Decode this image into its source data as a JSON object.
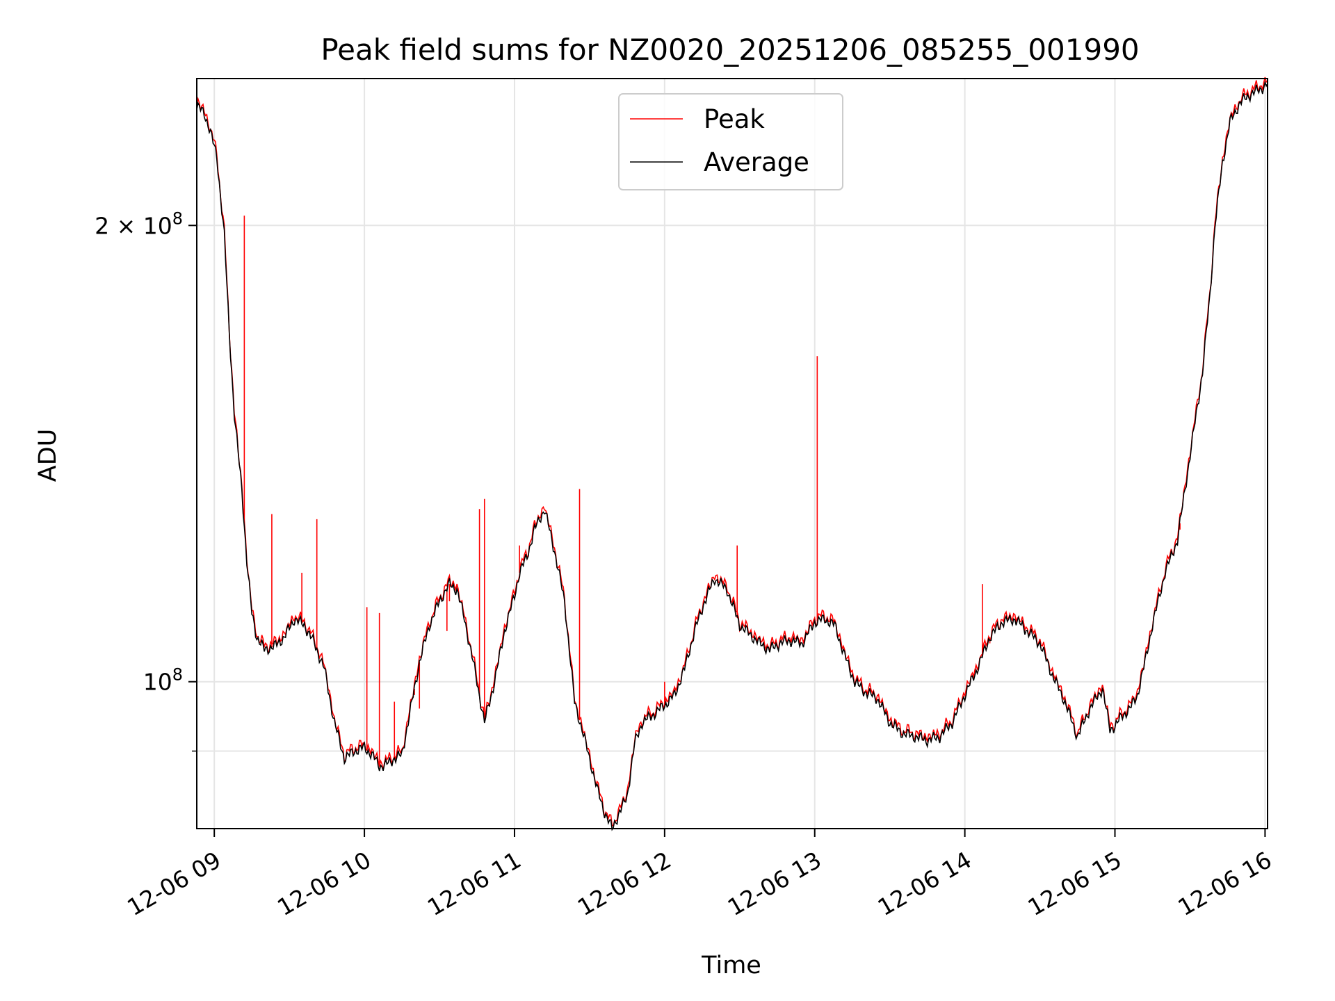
{
  "chart_data": {
    "type": "line",
    "title": "Peak field sums for NZ0020_20251206_085255_001990",
    "xlabel": "Time",
    "ylabel": "ADU",
    "yscale": "log",
    "grid": true,
    "legend_position": "top-center",
    "xlim": [
      "12-06 08:53",
      "12-06 16:01"
    ],
    "ylim": [
      80000000,
      250000000
    ],
    "x_ticks": [
      "12-06 09:00",
      "12-06 10:00",
      "12-06 11:00",
      "12-06 12:00",
      "12-06 13:00",
      "12-06 14:00",
      "12-06 15:00",
      "12-06 16:00"
    ],
    "x_tick_labels": [
      "12-06 09",
      "12-06 10",
      "12-06 11",
      "12-06 12",
      "12-06 13",
      "12-06 14",
      "12-06 15",
      "12-06 16"
    ],
    "y_ticks": [
      100000000,
      200000000
    ],
    "y_minor_ticks": [
      90000000
    ],
    "y_tick_labels": [
      {
        "base": "10",
        "exp": "8",
        "prefix": ""
      },
      {
        "base": "10",
        "exp": "8",
        "prefix": "2 × "
      }
    ],
    "series": [
      {
        "name": "Average",
        "color": "#000000",
        "x": [
          "12-06 08:53",
          "12-06 08:56",
          "12-06 08:58",
          "12-06 09:01",
          "12-06 09:04",
          "12-06 09:06",
          "12-06 09:08",
          "12-06 09:11",
          "12-06 09:13",
          "12-06 09:15",
          "12-06 09:17",
          "12-06 09:20",
          "12-06 09:24",
          "12-06 09:28",
          "12-06 09:32",
          "12-06 09:36",
          "12-06 09:40",
          "12-06 09:44",
          "12-06 09:48",
          "12-06 09:52",
          "12-06 09:56",
          "12-06 10:00",
          "12-06 10:03",
          "12-06 10:06",
          "12-06 10:08",
          "12-06 10:12",
          "12-06 10:15",
          "12-06 10:18",
          "12-06 10:22",
          "12-06 10:26",
          "12-06 10:30",
          "12-06 10:34",
          "12-06 10:37",
          "12-06 10:40",
          "12-06 10:44",
          "12-06 10:48",
          "12-06 10:52",
          "12-06 10:56",
          "12-06 11:00",
          "12-06 11:02",
          "12-06 11:05",
          "12-06 11:08",
          "12-06 11:12",
          "12-06 11:16",
          "12-06 11:20",
          "12-06 11:24",
          "12-06 11:27",
          "12-06 11:30",
          "12-06 11:33",
          "12-06 11:36",
          "12-06 11:39",
          "12-06 11:42",
          "12-06 11:45",
          "12-06 11:48",
          "12-06 11:51",
          "12-06 11:55",
          "12-06 12:00",
          "12-06 12:04",
          "12-06 12:08",
          "12-06 12:12",
          "12-06 12:16",
          "12-06 12:20",
          "12-06 12:25",
          "12-06 12:30",
          "12-06 12:34",
          "12-06 12:38",
          "12-06 12:42",
          "12-06 12:46",
          "12-06 12:50",
          "12-06 12:55",
          "12-06 13:00",
          "12-06 13:04",
          "12-06 13:08",
          "12-06 13:12",
          "12-06 13:16",
          "12-06 13:20",
          "12-06 13:25",
          "12-06 13:30",
          "12-06 13:35",
          "12-06 13:40",
          "12-06 13:45",
          "12-06 13:50",
          "12-06 13:55",
          "12-06 14:00",
          "12-06 14:05",
          "12-06 14:10",
          "12-06 14:15",
          "12-06 14:20",
          "12-06 14:25",
          "12-06 14:30",
          "12-06 14:35",
          "12-06 14:40",
          "12-06 14:45",
          "12-06 14:50",
          "12-06 14:55",
          "12-06 14:58",
          "12-06 15:00",
          "12-06 15:03",
          "12-06 15:06",
          "12-06 15:09",
          "12-06 15:12",
          "12-06 15:15",
          "12-06 15:20",
          "12-06 15:25",
          "12-06 15:30",
          "12-06 15:35",
          "12-06 15:38",
          "12-06 15:40",
          "12-06 15:43",
          "12-06 15:46",
          "12-06 15:50",
          "12-06 15:54",
          "12-06 15:58",
          "12-06 16:01"
        ],
        "values": [
          240000000,
          237000000,
          232000000,
          222000000,
          197000000,
          170000000,
          150000000,
          134000000,
          120000000,
          111000000,
          107000000,
          105000000,
          105500000,
          107000000,
          110000000,
          109000000,
          106000000,
          102000000,
          94000000,
          89000000,
          90000000,
          90500000,
          89500000,
          88000000,
          88000000,
          89000000,
          89500000,
          95000000,
          103000000,
          109000000,
          113000000,
          116000000,
          115000000,
          110000000,
          102000000,
          94000000,
          100000000,
          108000000,
          114000000,
          118000000,
          121000000,
          126000000,
          130000000,
          122000000,
          113000000,
          97000000,
          93000000,
          89000000,
          85000000,
          82000000,
          80000000,
          82000000,
          84000000,
          91000000,
          94000000,
          95000000,
          96500000,
          98000000,
          102000000,
          108000000,
          113000000,
          117000000,
          115000000,
          109000000,
          107500000,
          106000000,
          105000000,
          106000000,
          106500000,
          106000000,
          109500000,
          110000000,
          109000000,
          104000000,
          100000000,
          98500000,
          97500000,
          94000000,
          92500000,
          92000000,
          91500000,
          92000000,
          94000000,
          98000000,
          102000000,
          107000000,
          109500000,
          110000000,
          108000000,
          106000000,
          101000000,
          97000000,
          92000000,
          96000000,
          99000000,
          93000000,
          93500000,
          95000000,
          96000000,
          98000000,
          103000000,
          109000000,
          118000000,
          124000000,
          141000000,
          160000000,
          180000000,
          200000000,
          220000000,
          234000000,
          241000000,
          244000000,
          246000000,
          248000000
        ],
        "note_hidden": ""
      },
      {
        "name": "Peak",
        "color": "#ff0000",
        "spikes": [
          {
            "x": "12-06 09:12",
            "value": 203000000
          },
          {
            "x": "12-06 09:23",
            "value": 129000000
          },
          {
            "x": "12-06 09:35",
            "value": 118000000
          },
          {
            "x": "12-06 09:41",
            "value": 128000000
          },
          {
            "x": "12-06 10:01",
            "value": 112000000
          },
          {
            "x": "12-06 10:06",
            "value": 111000000
          },
          {
            "x": "12-06 10:12",
            "value": 97000000
          },
          {
            "x": "12-06 10:20",
            "value": 98000000
          },
          {
            "x": "12-06 10:22",
            "value": 96000000
          },
          {
            "x": "12-06 10:33",
            "value": 108000000
          },
          {
            "x": "12-06 10:34",
            "value": 113000000
          },
          {
            "x": "12-06 10:46",
            "value": 130000000
          },
          {
            "x": "12-06 10:48",
            "value": 132000000
          },
          {
            "x": "12-06 11:02",
            "value": 123000000
          },
          {
            "x": "12-06 11:26",
            "value": 134000000
          },
          {
            "x": "12-06 12:00",
            "value": 100000000
          },
          {
            "x": "12-06 12:29",
            "value": 123000000
          },
          {
            "x": "12-06 13:01",
            "value": 164000000
          },
          {
            "x": "12-06 14:07",
            "value": 116000000
          },
          {
            "x": "12-06 14:10",
            "value": 106000000
          },
          {
            "x": "12-06 15:26",
            "value": 126000000
          }
        ]
      }
    ],
    "legend": [
      {
        "label": "Peak",
        "color": "#ff0000"
      },
      {
        "label": "Average",
        "color": "#000000"
      }
    ]
  }
}
